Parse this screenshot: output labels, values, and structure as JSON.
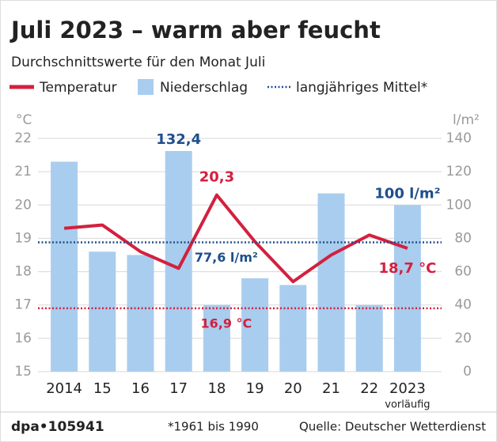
{
  "chart_data": {
    "type": "bar-line",
    "title": "Juli 2023 – warm aber feucht",
    "subtitle": "Durchschnittswerte für den Monat Juli",
    "categories": [
      "2014",
      "15",
      "16",
      "17",
      "18",
      "19",
      "20",
      "21",
      "22",
      "2023"
    ],
    "category_note": {
      "index": 9,
      "text": "vorläufig"
    },
    "series": [
      {
        "name": "Temperatur",
        "type": "line",
        "axis": "y",
        "color": "#d3203f",
        "values": [
          19.3,
          19.4,
          18.6,
          18.1,
          20.3,
          18.9,
          17.7,
          18.5,
          19.1,
          18.7
        ],
        "value_labels": [
          null,
          null,
          null,
          null,
          "20,3",
          null,
          null,
          null,
          null,
          "18,7 °C"
        ]
      },
      {
        "name": "Niederschlag",
        "type": "bar",
        "axis": "y2",
        "color": "#a9cdee",
        "values": [
          126,
          72,
          70,
          132.4,
          40,
          56,
          52,
          107,
          40,
          100
        ],
        "value_labels": [
          null,
          null,
          null,
          "132,4",
          null,
          null,
          null,
          null,
          null,
          "100 l/m²"
        ]
      }
    ],
    "reference_legend": {
      "name": "langjähriges Mittel*",
      "color": "#1f4e8c"
    },
    "reference_lines": [
      {
        "value": 77.6,
        "axis": "y2",
        "label": "77,6 l/m²",
        "color": "#1f4e8c"
      },
      {
        "value": 16.9,
        "axis": "y",
        "label": "16,9 °C",
        "color": "#d3203f"
      }
    ],
    "ylabel": "°C",
    "ylim": [
      15,
      22
    ],
    "yticks": [
      15,
      16,
      17,
      18,
      19,
      20,
      21,
      22
    ],
    "y2label": "l/m²",
    "y2lim": [
      0,
      140
    ],
    "y2ticks": [
      0,
      20,
      40,
      60,
      80,
      100,
      120,
      140
    ],
    "grid": true
  },
  "footer": {
    "id": "dpa•105941",
    "note": "*1961 bis 1990",
    "source": "Quelle: Deutscher Wetterdienst"
  }
}
